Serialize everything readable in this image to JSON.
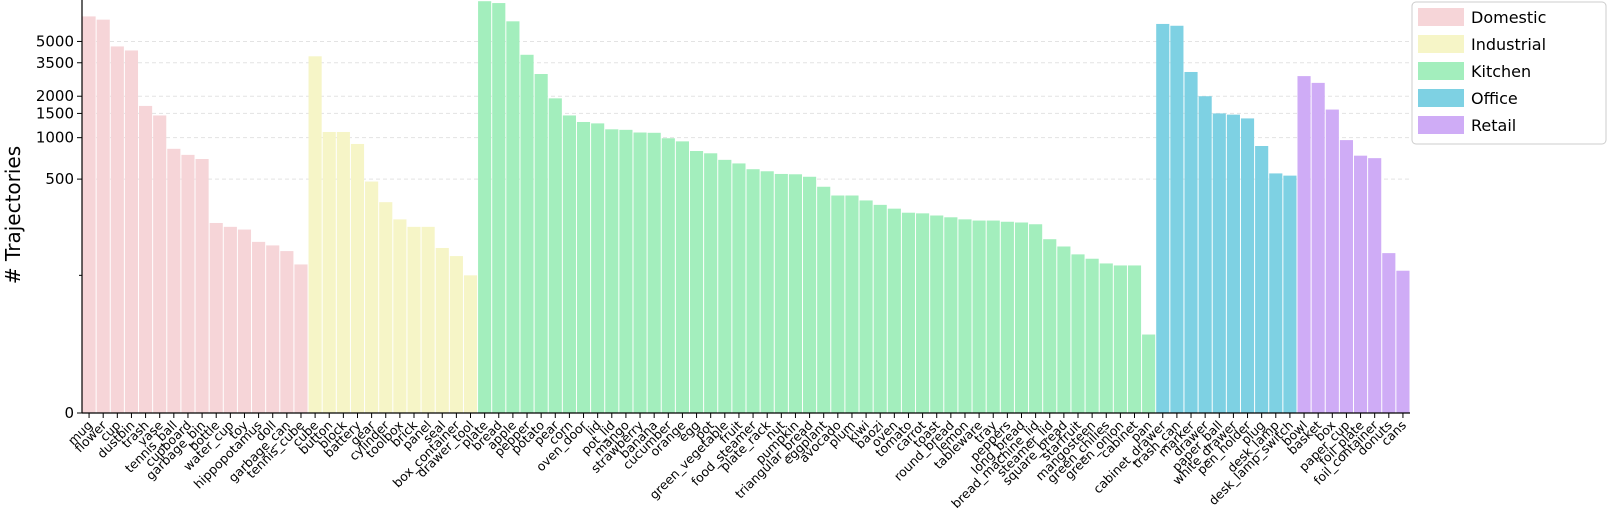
{
  "chart_data": {
    "type": "bar",
    "ylabel": "# Trajectories",
    "y_scale": "symlog",
    "y_ticks": [
      0,
      500,
      1000,
      1500,
      2000,
      3500,
      5000
    ],
    "y_tick_labels": [
      "0",
      "500",
      "1000",
      "1500",
      "2000",
      "3500",
      "5000"
    ],
    "grid": "horizontal dashed",
    "legend_position": "top-right",
    "groups": [
      {
        "name": "Domestic",
        "color": "#f6d5d8",
        "categories": [
          "mug",
          "flower",
          "cup",
          "dustbin",
          "trash",
          "vase",
          "tennis_ball",
          "cupboard",
          "garbage_bin",
          "bottle",
          "water_cup",
          "toy",
          "hippopotamus",
          "doll",
          "garbage_can",
          "tennis_cube"
        ],
        "values": [
          7600,
          7200,
          4600,
          4300,
          1700,
          1450,
          830,
          750,
          700,
          240,
          225,
          215,
          175,
          165,
          150,
          120
        ]
      },
      {
        "name": "Industrial",
        "color": "#f6f5c7",
        "categories": [
          "cube",
          "button",
          "block",
          "battery",
          "gear",
          "cylinder",
          "toolbox",
          "brick",
          "panel",
          "seal",
          "box_container",
          "drawer_tool"
        ],
        "values": [
          3900,
          1100,
          1100,
          900,
          480,
          340,
          255,
          225,
          225,
          158,
          138,
          100
        ]
      },
      {
        "name": "Kitchen",
        "color": "#a3eebd",
        "categories": [
          "plate",
          "bread",
          "apple",
          "pepper",
          "potato",
          "pear",
          "corn",
          "oven_door",
          "lid",
          "pot_lid",
          "mango",
          "strawberry",
          "banana",
          "cucumber",
          "orange",
          "egg",
          "pot",
          "green_vegetable",
          "fruit",
          "food_steamer",
          "plate_rack",
          "nut",
          "pumpkin",
          "triangular_bread",
          "eggplant",
          "avocado",
          "plum",
          "kiwi",
          "baozi",
          "oven",
          "tomato",
          "carrot",
          "toast",
          "round_bread",
          "lemon",
          "tableware",
          "tray",
          "peppers",
          "long_bread",
          "bread_machine_lid",
          "steamer_lid",
          "square_bread",
          "starfruit",
          "mangosteen",
          "green_chilies",
          "green_onion",
          "cabinet",
          "pan"
        ],
        "values": [
          9800,
          9500,
          7000,
          4000,
          2900,
          1930,
          1450,
          1300,
          1270,
          1150,
          1140,
          1090,
          1085,
          990,
          940,
          800,
          770,
          690,
          650,
          590,
          570,
          545,
          542,
          520,
          440,
          380,
          380,
          350,
          325,
          305,
          285,
          282,
          272,
          264,
          255,
          250,
          250,
          245,
          242,
          235,
          183,
          162,
          142,
          132,
          122,
          118,
          118,
          57
        ]
      },
      {
        "name": "Office",
        "color": "#7ed1e3",
        "categories": [
          "cabinet_drawer",
          "trash_can",
          "marker",
          "drawer",
          "paper_ball",
          "white_drawer",
          "pen_holder",
          "plug",
          "desk_lamp",
          "desk_lamp_switch"
        ],
        "values": [
          6700,
          6500,
          3000,
          2000,
          1500,
          1470,
          1380,
          870,
          550,
          530
        ]
      },
      {
        "name": "Retail",
        "color": "#cfacf6",
        "categories": [
          "bowl",
          "basket",
          "box",
          "paper_cup",
          "foil_plate",
          "foil_container",
          "donuts",
          "cans"
        ],
        "values": [
          2800,
          2500,
          1600,
          960,
          740,
          710,
          145,
          108
        ]
      }
    ]
  }
}
